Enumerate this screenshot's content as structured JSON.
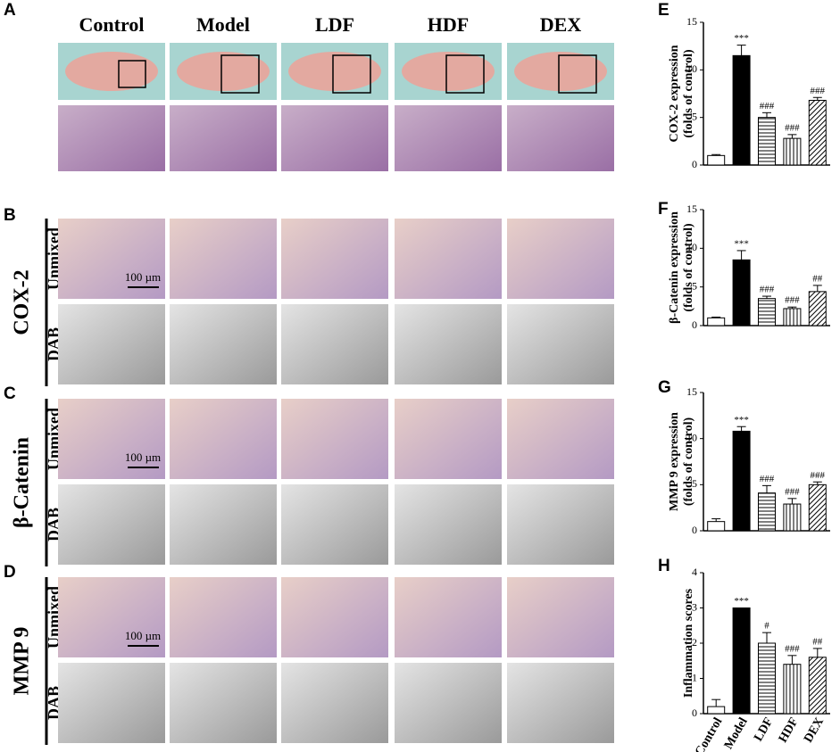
{
  "figure": {
    "panel_labels": [
      "A",
      "B",
      "C",
      "D",
      "E",
      "F",
      "G",
      "H"
    ],
    "columns": [
      "Control",
      "Model",
      "LDF",
      "HDF",
      "DEX"
    ],
    "rows": [
      {
        "label": "COX-2",
        "sub": [
          "Unmixed",
          "DAB"
        ],
        "scale_bar": "100 µm"
      },
      {
        "label": "β-Catenin",
        "sub": [
          "Unmixed",
          "DAB"
        ],
        "scale_bar": "100 µm"
      },
      {
        "label": "MMP 9",
        "sub": [
          "Unmixed",
          "DAB"
        ],
        "scale_bar": "100 µm"
      }
    ]
  },
  "chart_data": [
    {
      "type": "bar",
      "y_label": [
        "COX-2 expression",
        "(folds of control)"
      ],
      "values": [
        1.0,
        11.5,
        5.0,
        2.8,
        6.8
      ],
      "errors": [
        0.1,
        1.1,
        0.5,
        0.4,
        0.3
      ],
      "annotations": [
        null,
        "***",
        "###",
        "###",
        "###"
      ],
      "ylim": [
        0,
        15
      ],
      "yticks": [
        0,
        5,
        10,
        15
      ]
    },
    {
      "type": "bar",
      "y_label": [
        "β-Catenin expression",
        "(folds of control)"
      ],
      "values": [
        1.0,
        8.5,
        3.5,
        2.2,
        4.4
      ],
      "errors": [
        0.1,
        1.2,
        0.3,
        0.2,
        0.8
      ],
      "annotations": [
        null,
        "***",
        "###",
        "###",
        "##"
      ],
      "ylim": [
        0,
        15
      ],
      "yticks": [
        0,
        5,
        10,
        15
      ]
    },
    {
      "type": "bar",
      "y_label": [
        "MMP 9 expression",
        "(folds of control)"
      ],
      "values": [
        1.0,
        10.8,
        4.1,
        2.9,
        5.0
      ],
      "errors": [
        0.3,
        0.5,
        0.8,
        0.6,
        0.3
      ],
      "annotations": [
        null,
        "***",
        "###",
        "###",
        "###"
      ],
      "ylim": [
        0,
        15
      ],
      "yticks": [
        0,
        5,
        10,
        15
      ]
    },
    {
      "type": "bar",
      "y_label": [
        "Inflammation scores"
      ],
      "categories": [
        "Control",
        "Model",
        "LDF",
        "HDF",
        "DEX"
      ],
      "values": [
        0.2,
        3.0,
        2.0,
        1.4,
        1.6
      ],
      "errors": [
        0.2,
        0,
        0.3,
        0.25,
        0.25
      ],
      "annotations": [
        null,
        "***",
        "#",
        "###",
        "##"
      ],
      "ylim": [
        0,
        4
      ],
      "yticks": [
        0,
        1,
        2,
        3,
        4
      ]
    }
  ]
}
